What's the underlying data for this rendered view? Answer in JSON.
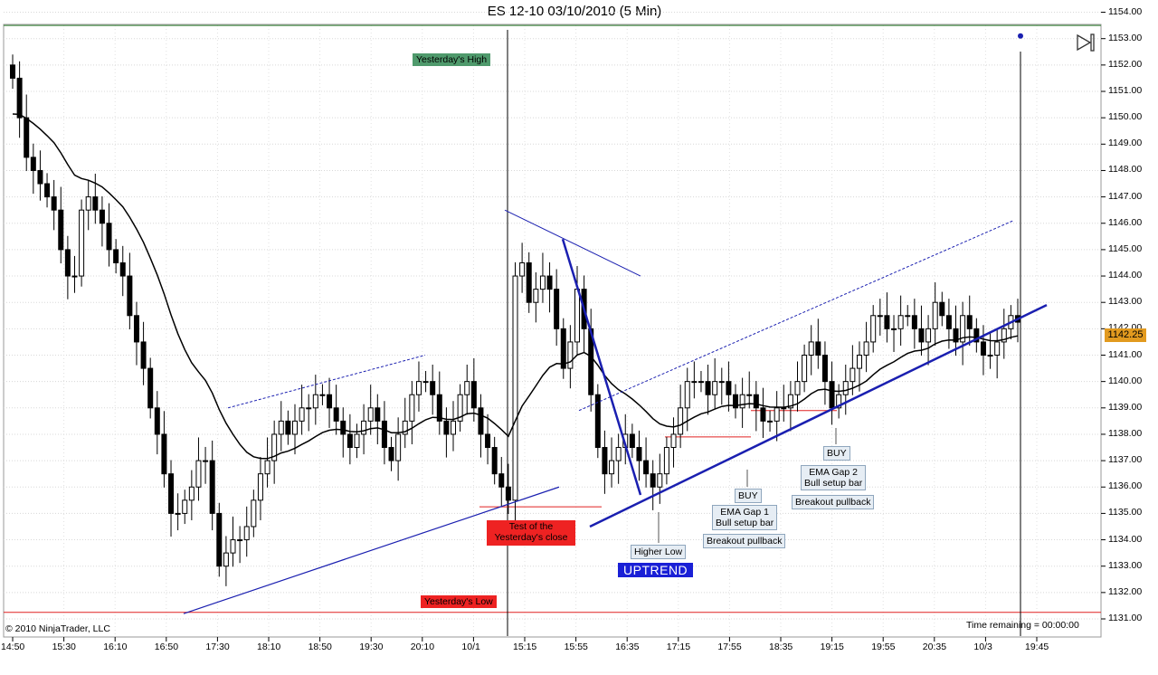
{
  "title": "ES 12-10  03/10/2010 (5 Min)",
  "copyright": "© 2010 NinjaTrader, LLC",
  "time_remaining": "Time remaining = 00:00:00",
  "current_price_label": "1142.25",
  "annotations": {
    "yesterdays_high": "Yesterday's High",
    "yesterdays_low": "Yesterday's Low",
    "test_close_line1": "Test of the",
    "test_close_line2": "Yesterday's close",
    "higher_low": "Higher Low",
    "uptrend": "UPTREND",
    "buy_1": "BUY",
    "ema_gap1_line1": "EMA Gap 1",
    "ema_gap1_line2": "Bull setup bar",
    "breakout_pullback_1": "Breakout pullback",
    "buy_2": "BUY",
    "ema_gap2_line1": "EMA Gap 2",
    "ema_gap2_line2": "Bull setup bar",
    "breakout_pullback_2": "Breakout pullback"
  },
  "colors": {
    "candle": "#000000",
    "ema": "#000000",
    "trendline": "#1a1fb0",
    "yesterdays_high_line": "#2f7f2f",
    "yesterdays_low_line": "#e02020",
    "red_box": "#ee2222",
    "green_box": "#4f9a6c",
    "blue_box": "#1a20d6",
    "price_badge": "#e29a1f"
  },
  "chart_data": {
    "type": "candlestick",
    "title": "ES 12-10  03/10/2010 (5 Min)",
    "ylim": [
      1131.0,
      1154.0
    ],
    "y_ticks": [
      "1131.00",
      "1132.00",
      "1133.00",
      "1134.00",
      "1135.00",
      "1136.00",
      "1137.00",
      "1138.00",
      "1139.00",
      "1140.00",
      "1141.00",
      "1142.00",
      "1143.00",
      "1144.00",
      "1145.00",
      "1146.00",
      "1147.00",
      "1148.00",
      "1149.00",
      "1150.00",
      "1151.00",
      "1152.00",
      "1153.00",
      "1154.00"
    ],
    "x_ticks": [
      "14:50",
      "15:30",
      "16:10",
      "16:50",
      "17:30",
      "18:10",
      "18:50",
      "19:30",
      "20:10",
      "10/1",
      "15:15",
      "15:55",
      "16:35",
      "17:15",
      "17:55",
      "18:35",
      "19:15",
      "19:55",
      "20:35",
      "10/3",
      "19:45"
    ],
    "yesterdays_high": 1153.5,
    "yesterdays_low": 1131.25,
    "current_price": 1142.25,
    "closes": [
      1151.5,
      1150,
      1148.5,
      1148,
      1147.5,
      1147,
      1146.5,
      1145,
      1144,
      1144,
      1146.5,
      1147,
      1146.5,
      1146,
      1145,
      1144.5,
      1144,
      1142.5,
      1141.5,
      1140.5,
      1139,
      1138,
      1136.5,
      1135,
      1135,
      1135.5,
      1136,
      1137,
      1137,
      1135,
      1133,
      1133.5,
      1134,
      1134,
      1134.5,
      1135.5,
      1136.5,
      1137,
      1138,
      1138.5,
      1138,
      1138.5,
      1139,
      1139,
      1139.5,
      1139.5,
      1139,
      1138.5,
      1138,
      1137.5,
      1138,
      1138.5,
      1139,
      1138.5,
      1137.5,
      1137,
      1138,
      1138.5,
      1139.5,
      1140,
      1140,
      1139.5,
      1138.5,
      1138,
      1138.5,
      1139.5,
      1140,
      1139,
      1138,
      1137.5,
      1136.5,
      1136,
      1135.5,
      1144,
      1144.5,
      1143,
      1143.5,
      1144,
      1143.5,
      1142,
      1140.5,
      1141.5,
      1143.5,
      1142,
      1139.5,
      1137.5,
      1136.5,
      1137,
      1137.5,
      1138,
      1137.5,
      1137,
      1136.5,
      1136,
      1136.5,
      1137.5,
      1138,
      1139,
      1140,
      1140,
      1140,
      1139.5,
      1140,
      1140,
      1139.5,
      1139,
      1139.5,
      1139.5,
      1139,
      1138.5,
      1138.5,
      1139,
      1139,
      1139.5,
      1140,
      1141,
      1141.5,
      1141,
      1140,
      1139,
      1139.5,
      1140,
      1140.5,
      1141,
      1141.5,
      1142.5,
      1142.5,
      1142,
      1142,
      1142.5,
      1142.5,
      1142,
      1141.5,
      1142,
      1143,
      1142.5,
      1142,
      1141.5,
      1142.5,
      1142,
      1141.5,
      1141,
      1141,
      1141.5,
      1142,
      1142.5,
      1142.25
    ]
  }
}
